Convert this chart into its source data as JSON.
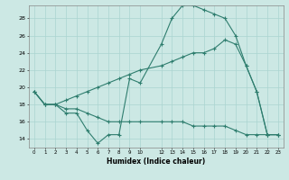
{
  "xlabel": "Humidex (Indice chaleur)",
  "background_color": "#cce8e4",
  "grid_color": "#aad4d0",
  "line_color": "#2e7d6e",
  "xlim": [
    -0.5,
    23.5
  ],
  "ylim": [
    13,
    29.5
  ],
  "xticks": [
    0,
    1,
    2,
    3,
    4,
    5,
    6,
    7,
    8,
    9,
    10,
    12,
    13,
    14,
    15,
    16,
    17,
    18,
    19,
    20,
    21,
    22,
    23
  ],
  "yticks": [
    14,
    16,
    18,
    20,
    22,
    24,
    26,
    28
  ],
  "line1_x": [
    0,
    1,
    2,
    3,
    4,
    5,
    6,
    7,
    8,
    9,
    10,
    12,
    13,
    14,
    15,
    16,
    17,
    18,
    19,
    20,
    21,
    22,
    23
  ],
  "line1_y": [
    19.5,
    18.0,
    18.0,
    17.0,
    17.0,
    15.0,
    13.5,
    14.5,
    14.5,
    21.0,
    20.5,
    25.0,
    28.0,
    29.5,
    29.5,
    29.0,
    28.5,
    28.0,
    26.0,
    22.5,
    19.5,
    14.5,
    14.5
  ],
  "line2_x": [
    0,
    1,
    2,
    3,
    4,
    5,
    6,
    7,
    8,
    9,
    10,
    12,
    13,
    14,
    15,
    16,
    17,
    18,
    19,
    20,
    21,
    22,
    23
  ],
  "line2_y": [
    19.5,
    18.0,
    18.0,
    18.5,
    19.0,
    19.5,
    20.0,
    20.5,
    21.0,
    21.5,
    22.0,
    22.5,
    23.0,
    23.5,
    24.0,
    24.0,
    24.5,
    25.5,
    25.0,
    22.5,
    19.5,
    14.5,
    14.5
  ],
  "line3_x": [
    0,
    1,
    2,
    3,
    4,
    5,
    6,
    7,
    8,
    9,
    10,
    12,
    13,
    14,
    15,
    16,
    17,
    18,
    19,
    20,
    21,
    22,
    23
  ],
  "line3_y": [
    19.5,
    18.0,
    18.0,
    17.5,
    17.5,
    17.0,
    16.5,
    16.0,
    16.0,
    16.0,
    16.0,
    16.0,
    16.0,
    16.0,
    15.5,
    15.5,
    15.5,
    15.5,
    15.0,
    14.5,
    14.5,
    14.5,
    14.5
  ]
}
